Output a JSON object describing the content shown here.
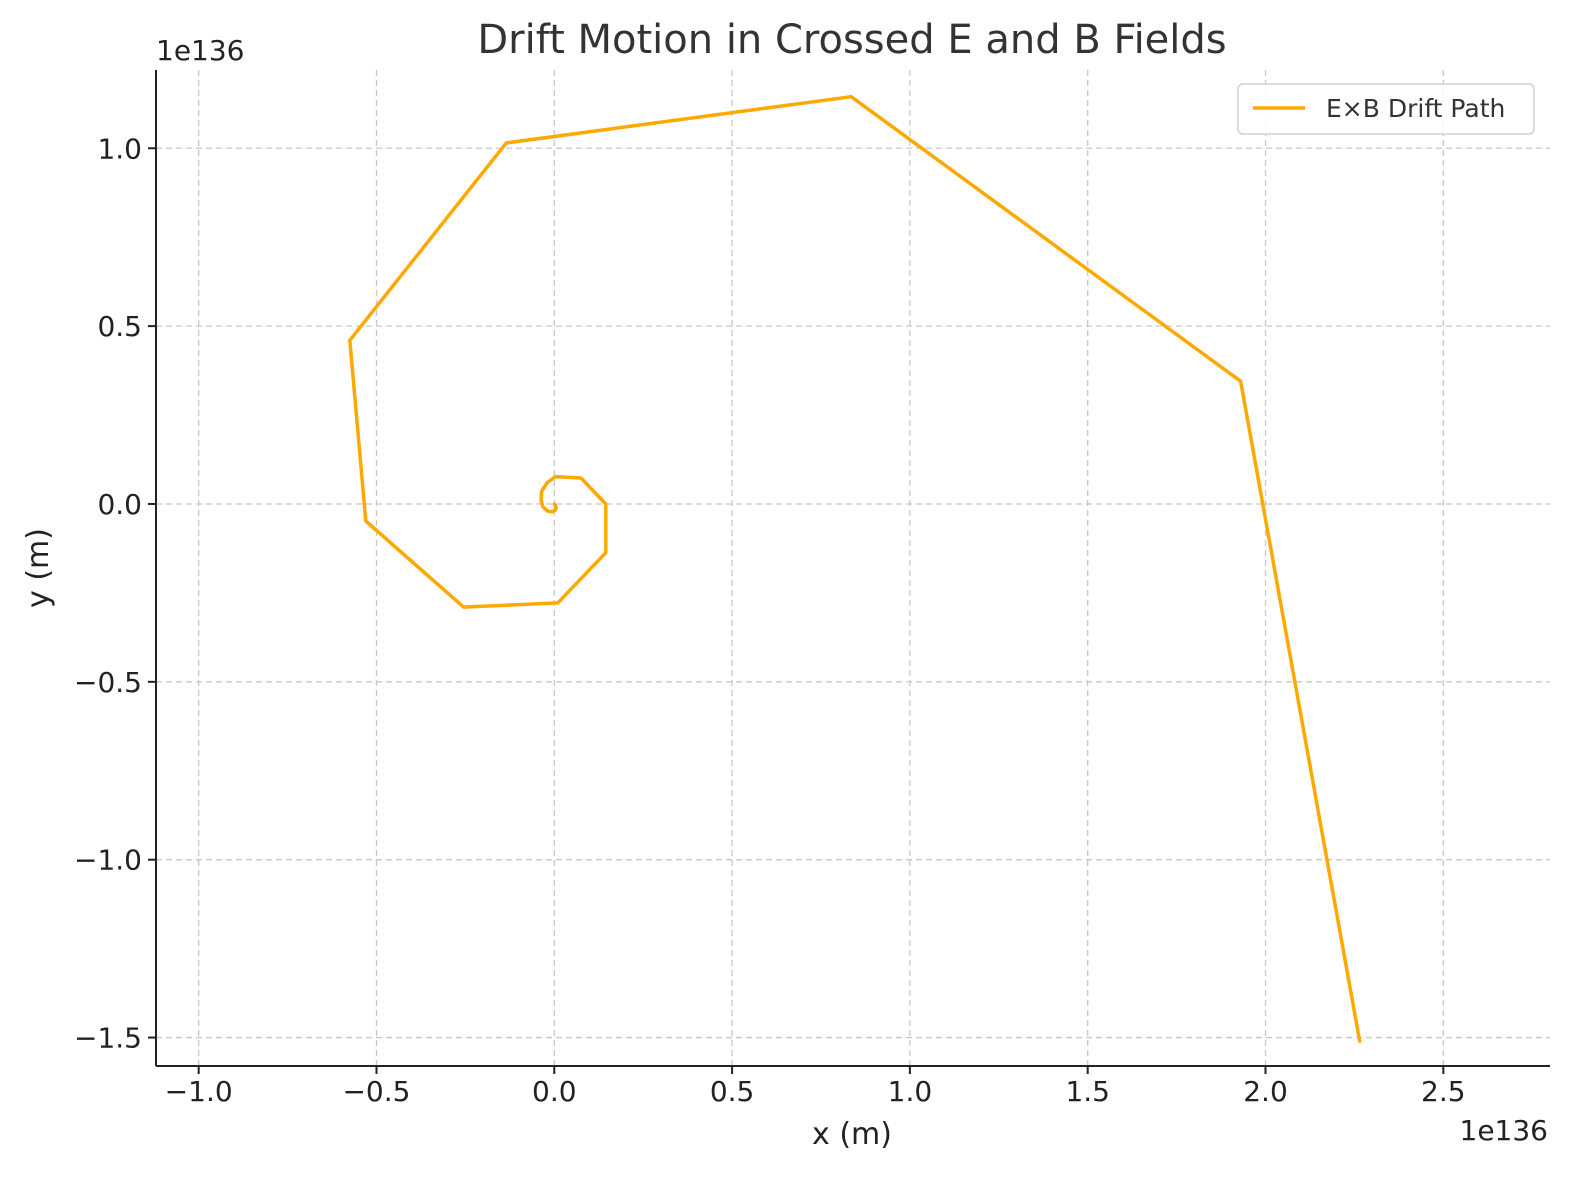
{
  "chart_data": {
    "type": "line",
    "title": "Drift Motion in Crossed E and B Fields",
    "xlabel": "x (m)",
    "ylabel": "y (m)",
    "x_offset_label": "1e136",
    "y_offset_label": "1e136",
    "xlim": [
      -1.12,
      2.8
    ],
    "ylim": [
      -1.58,
      1.22
    ],
    "xticks": [
      -1.0,
      -0.5,
      0.0,
      0.5,
      1.0,
      1.5,
      2.0,
      2.5
    ],
    "xtick_labels": [
      "−1.0",
      "−0.5",
      "0.0",
      "0.5",
      "1.0",
      "1.5",
      "2.0",
      "2.5"
    ],
    "yticks": [
      -1.5,
      -1.0,
      -0.5,
      0.0,
      0.5,
      1.0
    ],
    "ytick_labels": [
      "−1.5",
      "−1.0",
      "−0.5",
      "0.0",
      "0.5",
      "1.0"
    ],
    "grid": true,
    "legend_position": "top-right",
    "series": [
      {
        "name": "E×B Drift Path",
        "color": "#FFA800",
        "x": [
          0.0,
          0.005,
          0.003,
          -0.005,
          -0.018,
          -0.032,
          -0.037,
          -0.036,
          -0.02,
          0.003,
          0.075,
          0.145,
          0.145,
          0.01,
          -0.255,
          -0.53,
          -0.575,
          -0.135,
          0.835,
          1.93,
          2.265
        ],
        "y": [
          0.0,
          -0.008,
          -0.017,
          -0.022,
          -0.02,
          -0.008,
          0.01,
          0.035,
          0.06,
          0.077,
          0.073,
          0.0,
          -0.137,
          -0.278,
          -0.29,
          -0.048,
          0.46,
          1.015,
          1.145,
          0.345,
          -1.51
        ]
      }
    ]
  }
}
